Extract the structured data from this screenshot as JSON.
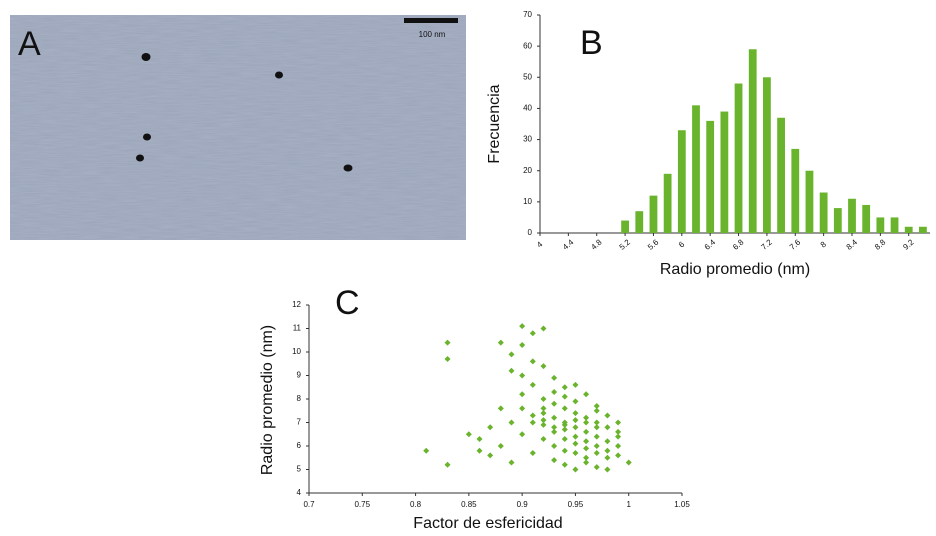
{
  "image_panel": {
    "label": "A",
    "scale_bar": "100 nm"
  },
  "chart_data": [
    {
      "type": "histogram",
      "label": "B",
      "ylabel": "Frecuencia",
      "xlabel": "Radio promedio (nm)",
      "color": "#6ab42d",
      "bins": [
        5.1,
        5.3,
        5.5,
        5.7,
        5.9,
        6.1,
        6.3,
        6.5,
        6.7,
        6.9,
        7.1,
        7.3,
        7.5,
        7.7,
        7.9,
        8.1,
        8.3,
        8.5,
        8.7,
        8.9,
        9.1,
        9.3,
        9.5
      ],
      "values": [
        4,
        7,
        12,
        19,
        33,
        41,
        36,
        39,
        48,
        59,
        50,
        37,
        27,
        20,
        13,
        8,
        11,
        9,
        5,
        5,
        2,
        2
      ],
      "xlim": [
        4,
        9.5
      ],
      "xticks": [
        4,
        4.4,
        4.8,
        5.2,
        5.6,
        6,
        6.4,
        6.8,
        7.2,
        7.6,
        8,
        8.4,
        8.8,
        9.2
      ],
      "ylim": [
        0,
        70
      ],
      "yticks": [
        0,
        10,
        20,
        30,
        40,
        50,
        60,
        70
      ]
    },
    {
      "type": "scatter",
      "label": "C",
      "ylabel": "Radio promedio (nm)",
      "xlabel": "Factor de esfericidad",
      "color": "#6ab42d",
      "x": [
        0.81,
        0.83,
        0.83,
        0.83,
        0.86,
        0.87,
        0.88,
        0.89,
        0.9,
        0.91,
        0.92,
        0.9,
        0.91,
        0.89,
        0.9,
        0.92,
        0.93,
        0.91,
        0.9,
        0.92,
        0.93,
        0.94,
        0.95,
        0.96,
        0.97,
        0.88,
        0.89,
        0.87,
        0.9,
        0.88,
        0.89,
        0.91,
        0.92,
        0.93,
        0.94,
        0.95,
        0.96,
        0.97,
        0.98,
        0.99,
        0.92,
        0.93,
        0.94,
        0.95,
        0.96,
        0.97,
        0.98,
        0.93,
        0.94,
        0.95,
        0.96,
        0.97,
        0.98,
        0.99,
        1.0,
        0.94,
        0.95,
        0.96,
        0.97,
        0.98,
        0.99,
        0.93,
        0.92,
        0.94,
        0.95,
        0.96,
        0.97,
        0.93,
        0.92,
        0.91,
        0.95,
        0.96,
        0.94,
        0.98,
        0.99,
        0.97,
        0.96,
        0.95,
        0.94,
        0.93,
        0.92,
        0.91,
        0.9,
        0.94,
        0.95,
        0.85,
        0.86,
        0.98,
        0.99,
        0.97
      ],
      "values": [
        5.8,
        5.2,
        10.4,
        9.7,
        6.3,
        5.6,
        10.4,
        9.9,
        11.1,
        10.8,
        11,
        10.3,
        9.6,
        9.2,
        9.0,
        9.4,
        8.9,
        8.6,
        8.2,
        8.0,
        8.3,
        8.1,
        7.9,
        8.2,
        7.5,
        7.6,
        7.0,
        6.8,
        6.5,
        6.0,
        5.3,
        5.7,
        7.4,
        7.2,
        7.0,
        6.8,
        6.6,
        6.4,
        6.2,
        6.0,
        6.9,
        6.6,
        6.3,
        6.1,
        5.9,
        5.7,
        5.5,
        5.4,
        5.2,
        5.0,
        5.3,
        5.1,
        5.0,
        5.6,
        5.3,
        7.6,
        7.4,
        7.2,
        7.0,
        6.8,
        6.6,
        7.8,
        7.1,
        6.7,
        6.4,
        6.2,
        6.0,
        6.0,
        6.3,
        7.0,
        5.7,
        5.5,
        5.8,
        5.8,
        6.4,
        6.8,
        7.0,
        7.1,
        6.9,
        6.8,
        7.6,
        7.3,
        7.6,
        8.5,
        8.6,
        6.5,
        5.8,
        7.3,
        7.0,
        7.7
      ],
      "xlim": [
        0.7,
        1.05
      ],
      "xticks": [
        0.7,
        0.75,
        0.8,
        0.85,
        0.9,
        0.95,
        1,
        1.05
      ],
      "ylim": [
        4,
        12
      ],
      "yticks": [
        4,
        5,
        6,
        7,
        8,
        9,
        10,
        11,
        12
      ]
    }
  ]
}
